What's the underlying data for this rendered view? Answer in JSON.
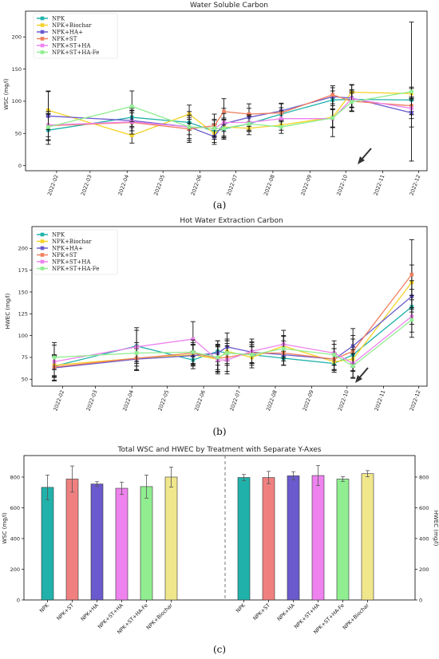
{
  "chart_data": [
    {
      "id": "a",
      "type": "line",
      "title": "Water Soluble Carbon",
      "ylabel": "WSC (mg/l)",
      "caption": "(a)",
      "x_ticks": [
        "2022-02",
        "2022-03",
        "2022-04",
        "2022-05",
        "2022-06",
        "2022-07",
        "2022-08",
        "2022-09",
        "2022-10",
        "2022-11",
        "2022-12"
      ],
      "xlim": [
        "2022-01-06",
        "2022-12-08"
      ],
      "ylim": [
        -8,
        240
      ],
      "y_ticks": [
        0,
        50,
        100,
        150,
        200
      ],
      "x": [
        "2022-01-25",
        "2022-04-05",
        "2022-05-23",
        "2022-06-13",
        "2022-06-21",
        "2022-07-12",
        "2022-08-08",
        "2022-09-20",
        "2022-10-06",
        "2022-11-25"
      ],
      "series": [
        {
          "name": "NPK",
          "color": "#20b2aa",
          "values": [
            55,
            75,
            67,
            53,
            57,
            65,
            80,
            102,
            103,
            102
          ],
          "err": [
            22,
            14,
            12,
            12,
            14,
            12,
            10,
            14,
            12,
            18
          ]
        },
        {
          "name": "NPK+Biochar",
          "color": "#f5d328",
          "values": [
            86,
            47,
            80,
            50,
            60,
            58,
            63,
            75,
            114,
            112
          ],
          "err": [
            30,
            12,
            14,
            14,
            14,
            10,
            8,
            30,
            12,
            10
          ]
        },
        {
          "name": "NPK+HA+",
          "color": "#6a5acd",
          "values": [
            77,
            70,
            60,
            45,
            65,
            75,
            85,
            107,
            105,
            82
          ],
          "err": [
            38,
            16,
            24,
            12,
            24,
            14,
            12,
            14,
            20,
            22
          ]
        },
        {
          "name": "NPK+ST",
          "color": "#f08060",
          "values": [
            62,
            67,
            57,
            62,
            84,
            80,
            82,
            110,
            100,
            93
          ],
          "err": [
            22,
            18,
            18,
            18,
            20,
            16,
            14,
            14,
            16,
            14
          ]
        },
        {
          "name": "NPK+ST+HA",
          "color": "#ee82ee",
          "values": [
            63,
            68,
            60,
            58,
            67,
            67,
            73,
            73,
            104,
            89
          ],
          "err": [
            18,
            14,
            12,
            14,
            14,
            12,
            12,
            14,
            14,
            16
          ]
        },
        {
          "name": "NPK+ST+HA-Fe",
          "color": "#90ee90",
          "values": [
            60,
            92,
            60,
            58,
            58,
            65,
            60,
            74,
            99,
            115
          ],
          "err": [
            20,
            24,
            18,
            12,
            14,
            12,
            10,
            14,
            14,
            108
          ]
        }
      ],
      "legend": "upper left"
    },
    {
      "id": "b",
      "type": "line",
      "title": "Hot Water Extraction Carbon",
      "ylabel": "HWEC (mg/l)",
      "caption": "(b)",
      "x_ticks": [
        "2022-02",
        "2022-03",
        "2022-04",
        "2022-05",
        "2022-06",
        "2022-07",
        "2022-08",
        "2022-09",
        "2022-10",
        "2022-11",
        "2022-12"
      ],
      "xlim": [
        "2022-01-06",
        "2022-12-08"
      ],
      "ylim": [
        42,
        225
      ],
      "y_ticks": [
        50,
        75,
        100,
        125,
        150,
        175,
        200
      ],
      "x": [
        "2022-01-25",
        "2022-04-05",
        "2022-05-23",
        "2022-06-13",
        "2022-06-21",
        "2022-07-12",
        "2022-08-08",
        "2022-09-20",
        "2022-10-06",
        "2022-11-25"
      ],
      "series": [
        {
          "name": "NPK",
          "color": "#20b2aa",
          "values": [
            65,
            88,
            72,
            82,
            80,
            78,
            74,
            68,
            78,
            133
          ],
          "err": [
            12,
            18,
            10,
            12,
            14,
            10,
            8,
            10,
            18,
            20
          ]
        },
        {
          "name": "NPK+Biochar",
          "color": "#f5d328",
          "values": [
            66,
            74,
            78,
            73,
            82,
            75,
            88,
            70,
            73,
            161
          ],
          "err": [
            12,
            14,
            12,
            14,
            14,
            12,
            12,
            10,
            14,
            20
          ]
        },
        {
          "name": "NPK+HA+",
          "color": "#6a5acd",
          "values": [
            63,
            73,
            77,
            80,
            87,
            81,
            78,
            73,
            88,
            145
          ],
          "err": [
            14,
            12,
            12,
            14,
            16,
            12,
            12,
            12,
            20,
            18
          ]
        },
        {
          "name": "NPK+ST",
          "color": "#f08060",
          "values": [
            64,
            74,
            80,
            74,
            75,
            80,
            80,
            73,
            82,
            170
          ],
          "err": [
            12,
            14,
            12,
            16,
            16,
            12,
            14,
            12,
            18,
            40
          ]
        },
        {
          "name": "NPK+ST+HA",
          "color": "#ee82ee",
          "values": [
            70,
            87,
            96,
            72,
            72,
            82,
            90,
            80,
            68,
            122
          ],
          "err": [
            22,
            22,
            20,
            16,
            16,
            14,
            16,
            14,
            16,
            24
          ]
        },
        {
          "name": "NPK+ST+HA-Fe",
          "color": "#90ee90",
          "values": [
            75,
            80,
            81,
            75,
            80,
            78,
            85,
            78,
            65,
            118
          ],
          "err": [
            14,
            12,
            14,
            14,
            14,
            12,
            14,
            12,
            14,
            14
          ]
        }
      ],
      "legend": "upper left"
    },
    {
      "id": "c",
      "type": "bar",
      "title": "Total WSC and HWEC by Treatment with Separate Y-Axes",
      "caption": "(c)",
      "categories": [
        "NPK",
        "NPK+ST",
        "NPK+HA",
        "NPK+ST+HA",
        "NPK+ST+HA-Fe",
        "NPK+Biochar"
      ],
      "colors": [
        "#20b2aa",
        "#f08080",
        "#6a5acd",
        "#ee82ee",
        "#90ee90",
        "#f0e68c"
      ],
      "groups": [
        {
          "ylabel": "WSC (mg/l)",
          "axis": "left",
          "values": [
            733,
            787,
            755,
            727,
            738,
            800
          ],
          "err": [
            80,
            85,
            15,
            40,
            75,
            65
          ]
        },
        {
          "ylabel": "HWEC (mg/l)",
          "axis": "right",
          "values": [
            797,
            797,
            808,
            810,
            787,
            822
          ],
          "err": [
            20,
            40,
            27,
            65,
            15,
            20
          ]
        }
      ],
      "ylim": [
        0,
        940
      ],
      "y_ticks": [
        0,
        200,
        400,
        600,
        800
      ]
    }
  ]
}
